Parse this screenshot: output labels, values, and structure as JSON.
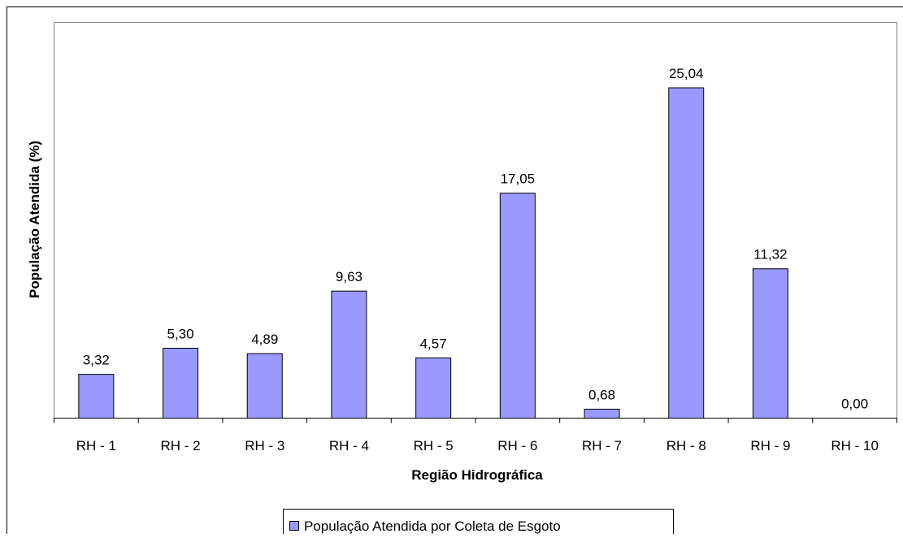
{
  "chart_data": {
    "type": "bar",
    "categories": [
      "RH - 1",
      "RH - 2",
      "RH - 3",
      "RH - 4",
      "RH - 5",
      "RH - 6",
      "RH - 7",
      "RH - 8",
      "RH - 9",
      "RH - 10"
    ],
    "series": [
      {
        "name": "População Atendida por Coleta de Esgoto",
        "color": "#9999ff",
        "values": [
          3.32,
          5.3,
          4.89,
          9.63,
          4.57,
          17.05,
          0.68,
          25.04,
          11.32,
          0.0
        ],
        "value_labels": [
          "3,32",
          "5,30",
          "4,89",
          "9,63",
          "4,57",
          "17,05",
          "0,68",
          "25,04",
          "11,32",
          "0,00"
        ]
      }
    ],
    "xlabel": "Região Hidrográfica",
    "ylabel": "População Atendida (%)",
    "ylim": [
      0,
      30
    ],
    "legend": "bottom"
  }
}
